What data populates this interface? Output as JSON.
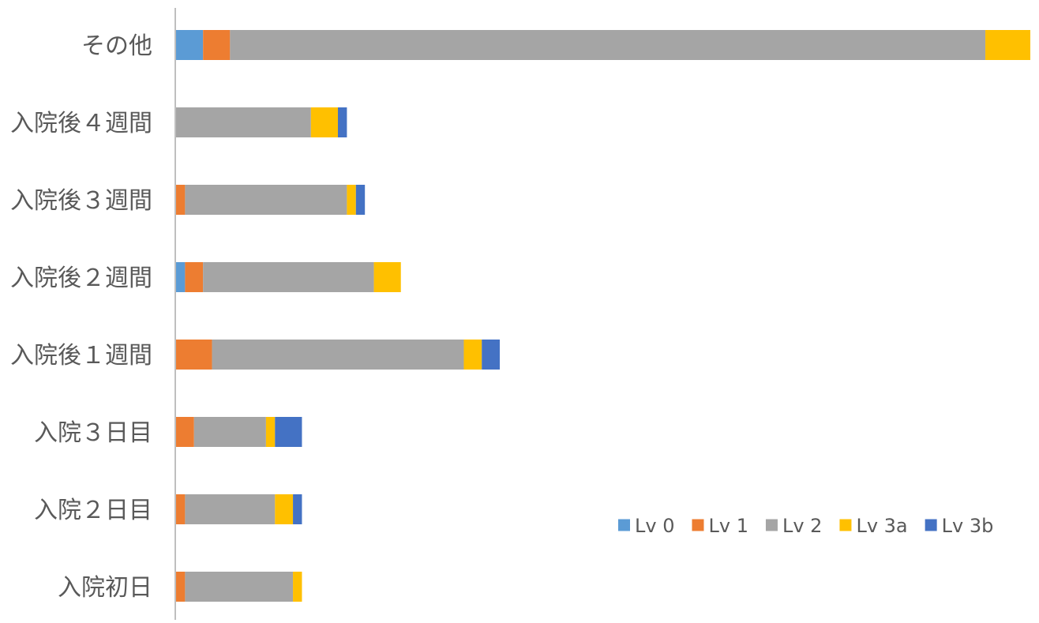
{
  "chart_data": {
    "type": "bar",
    "orientation": "horizontal",
    "stacked": true,
    "categories": [
      "その他",
      "入院後４週間",
      "入院後３週間",
      "入院後２週間",
      "入院後１週間",
      "入院３日目",
      "入院２日目",
      "入院初日"
    ],
    "series": [
      {
        "name": "Lv 0",
        "color": "#5b9bd5",
        "values": [
          3,
          0,
          0,
          1,
          0,
          0,
          0,
          0
        ]
      },
      {
        "name": "Lv 1",
        "color": "#ed7d31",
        "values": [
          3,
          0,
          1,
          2,
          4,
          2,
          1,
          1
        ]
      },
      {
        "name": "Lv 2",
        "color": "#a5a5a5",
        "values": [
          84,
          15,
          18,
          19,
          28,
          8,
          10,
          12
        ]
      },
      {
        "name": "Lv 3a",
        "color": "#ffc000",
        "values": [
          5,
          3,
          1,
          3,
          2,
          1,
          2,
          1
        ]
      },
      {
        "name": "Lv 3b",
        "color": "#4472c4",
        "values": [
          0,
          1,
          1,
          0,
          2,
          3,
          1,
          0
        ]
      }
    ],
    "xlim": [
      0,
      95
    ],
    "grid": false,
    "legend_position": "bottom-right",
    "axis_line_color": "#bfbfbf",
    "title": "",
    "xlabel": "",
    "ylabel": ""
  }
}
